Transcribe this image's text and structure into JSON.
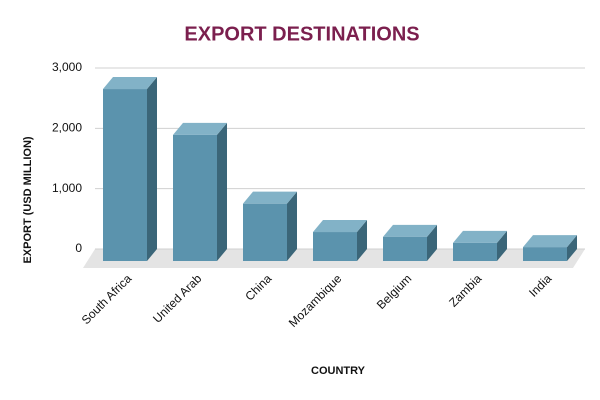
{
  "chart_data": {
    "type": "bar3d",
    "title": "EXPORT DESTINATIONS",
    "x_label": "COUNTRY",
    "y_label": "EXPORT (USD MILLION)",
    "categories": [
      "South Africa",
      "United Arab",
      "China",
      "Mozambique",
      "Belgium",
      "Zambia",
      "India"
    ],
    "values": [
      2850,
      2090,
      950,
      480,
      400,
      300,
      230
    ],
    "color": "#5b93ad",
    "ylim": [
      0,
      3000
    ],
    "yticks": [
      0,
      {
        "value": 1000,
        "label": "1,000"
      },
      {
        "value": 2000,
        "label": "2,000"
      },
      {
        "value": 3000,
        "label": "3,000"
      }
    ],
    "grid": true
  }
}
